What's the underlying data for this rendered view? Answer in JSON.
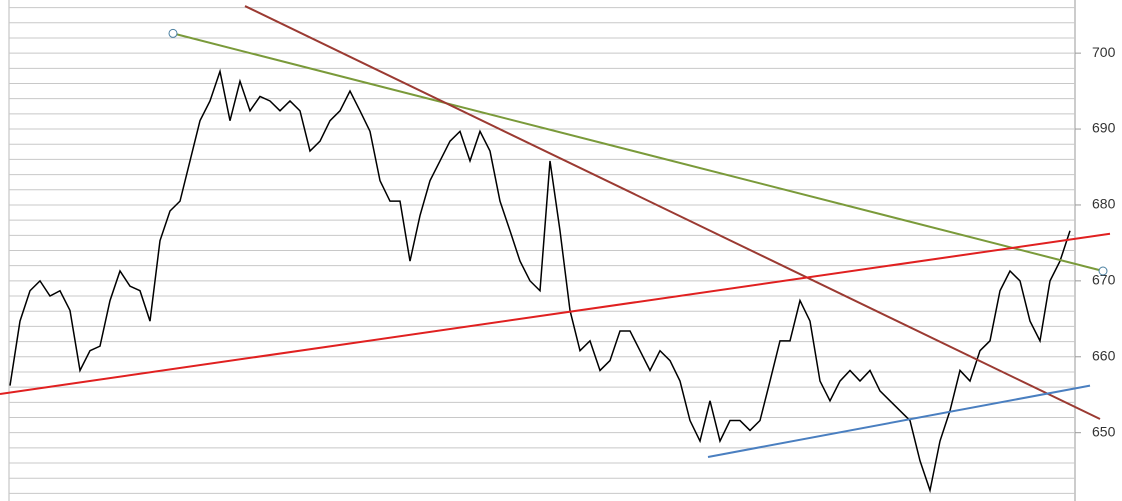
{
  "chart_data": {
    "type": "line",
    "color": "#000000",
    "values": [
      656.2,
      664.7,
      668.7,
      670.0,
      668.0,
      668.7,
      666.1,
      658.2,
      660.8,
      661.4,
      667.4,
      671.3,
      669.3,
      668.7,
      664.7,
      675.3,
      679.2,
      680.5,
      685.8,
      691.1,
      693.7,
      697.6,
      691.1,
      696.3,
      692.4,
      694.3,
      693.7,
      692.4,
      693.7,
      692.4,
      687.1,
      688.4,
      691.1,
      692.4,
      695.0,
      692.4,
      689.7,
      683.2,
      680.5,
      680.5,
      672.6,
      678.6,
      683.2,
      685.8,
      688.4,
      689.7,
      685.8,
      689.7,
      687.1,
      680.5,
      676.6,
      672.6,
      670.0,
      668.7,
      685.8,
      676.6,
      666.1,
      660.8,
      662.1,
      658.2,
      659.5,
      663.4,
      663.4,
      660.8,
      658.2,
      660.8,
      659.5,
      656.8,
      651.6,
      648.9,
      654.2,
      648.9,
      651.6,
      651.6,
      650.3,
      651.6,
      656.8,
      662.1,
      662.1,
      667.4,
      664.7,
      656.8,
      654.2,
      656.8,
      658.2,
      656.8,
      658.2,
      655.5,
      654.2,
      652.9,
      651.6,
      646.3,
      642.4,
      648.9,
      652.9,
      658.2,
      656.8,
      660.8,
      662.1,
      668.7,
      671.3,
      670.0,
      664.7,
      662.1,
      670.0,
      672.6,
      676.6
    ],
    "xlim": [
      -1,
      106.5
    ],
    "ylim": [
      641,
      707
    ],
    "yticks": [
      650,
      660,
      670,
      680,
      690,
      700
    ],
    "minor_yticks": [
      642,
      644,
      646,
      648,
      650,
      652,
      654,
      656,
      658,
      660,
      662,
      664,
      666,
      668,
      670,
      672,
      674,
      676,
      678,
      680,
      682,
      684,
      686,
      688,
      690,
      692,
      694,
      696,
      698,
      700,
      702,
      704,
      706
    ],
    "trendlines": [
      {
        "color": "#7a9a3a",
        "x": [
          16.3,
          109.3
        ],
        "values": [
          702.6,
          671.3
        ],
        "handles": true
      },
      {
        "color": "#9b3a32",
        "x": [
          23.5,
          109
        ],
        "values": [
          706.2,
          651.8
        ]
      },
      {
        "color": "#e02020",
        "x": [
          -1,
          110
        ],
        "values": [
          655.1,
          676.2
        ]
      },
      {
        "color": "#4a7fc0",
        "x": [
          69.8,
          108
        ],
        "values": [
          646.8,
          656.2
        ]
      }
    ]
  }
}
